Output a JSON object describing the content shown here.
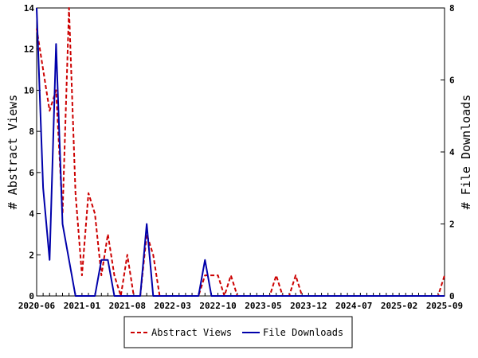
{
  "chart_data": {
    "type": "line",
    "x": [
      "2020-06",
      "2020-07",
      "2020-08",
      "2020-09",
      "2020-10",
      "2020-11",
      "2020-12",
      "2021-01",
      "2021-02",
      "2021-03",
      "2021-04",
      "2021-05",
      "2021-06",
      "2021-07",
      "2021-08",
      "2021-09",
      "2021-10",
      "2021-11",
      "2021-12",
      "2022-01",
      "2022-02",
      "2022-03",
      "2022-04",
      "2022-05",
      "2022-06",
      "2022-07",
      "2022-08",
      "2022-09",
      "2022-10",
      "2022-11",
      "2022-12",
      "2023-01",
      "2023-02",
      "2023-03",
      "2023-04",
      "2023-05",
      "2023-06",
      "2023-07",
      "2023-08",
      "2023-09",
      "2023-10",
      "2023-11",
      "2023-12",
      "2024-01",
      "2024-02",
      "2024-03",
      "2024-04",
      "2024-05",
      "2024-06",
      "2024-07",
      "2024-08",
      "2024-09",
      "2024-10",
      "2024-11",
      "2024-12",
      "2025-01",
      "2025-02",
      "2025-03",
      "2025-04",
      "2025-05",
      "2025-06",
      "2025-07",
      "2025-08",
      "2025-09"
    ],
    "series": [
      {
        "name": "Abstract Views",
        "axis": "left",
        "color": "#cc0000",
        "dash": true,
        "values": [
          13,
          11,
          9,
          10,
          4,
          14,
          5,
          1,
          5,
          4,
          1,
          3,
          1,
          0,
          2,
          0,
          0,
          3,
          2,
          0,
          0,
          0,
          0,
          0,
          0,
          0,
          1,
          1,
          1,
          0,
          1,
          0,
          0,
          0,
          0,
          0,
          0,
          1,
          0,
          0,
          1,
          0,
          0,
          0,
          0,
          0,
          0,
          0,
          0,
          0,
          0,
          0,
          0,
          0,
          0,
          0,
          0,
          0,
          0,
          0,
          0,
          0,
          0,
          1
        ]
      },
      {
        "name": "File Downloads",
        "axis": "right",
        "color": "#0000aa",
        "dash": false,
        "values": [
          8,
          3,
          1,
          7,
          2,
          1,
          0,
          0,
          0,
          0,
          1,
          1,
          0,
          0,
          0,
          0,
          0,
          2,
          0,
          0,
          0,
          0,
          0,
          0,
          0,
          0,
          1,
          0,
          0,
          0,
          0,
          0,
          0,
          0,
          0,
          0,
          0,
          0,
          0,
          0,
          0,
          0,
          0,
          0,
          0,
          0,
          0,
          0,
          0,
          0,
          0,
          0,
          0,
          0,
          0,
          0,
          0,
          0,
          0,
          0,
          0,
          0,
          0,
          0
        ]
      }
    ],
    "x_tick_labels": [
      "2020-06",
      "2021-01",
      "2021-08",
      "2022-03",
      "2022-10",
      "2023-05",
      "2023-12",
      "2024-07",
      "2025-02",
      "2025-09"
    ],
    "ylabel": "# Abstract Views",
    "ylabel_right": "# File Downloads",
    "ylim": [
      0,
      14
    ],
    "ylim_right": [
      0,
      8
    ],
    "y_ticks": [
      0,
      2,
      4,
      6,
      8,
      10,
      12,
      14
    ],
    "y_ticks_right": [
      0,
      2,
      4,
      6,
      8
    ],
    "legend_position": "bottom"
  }
}
